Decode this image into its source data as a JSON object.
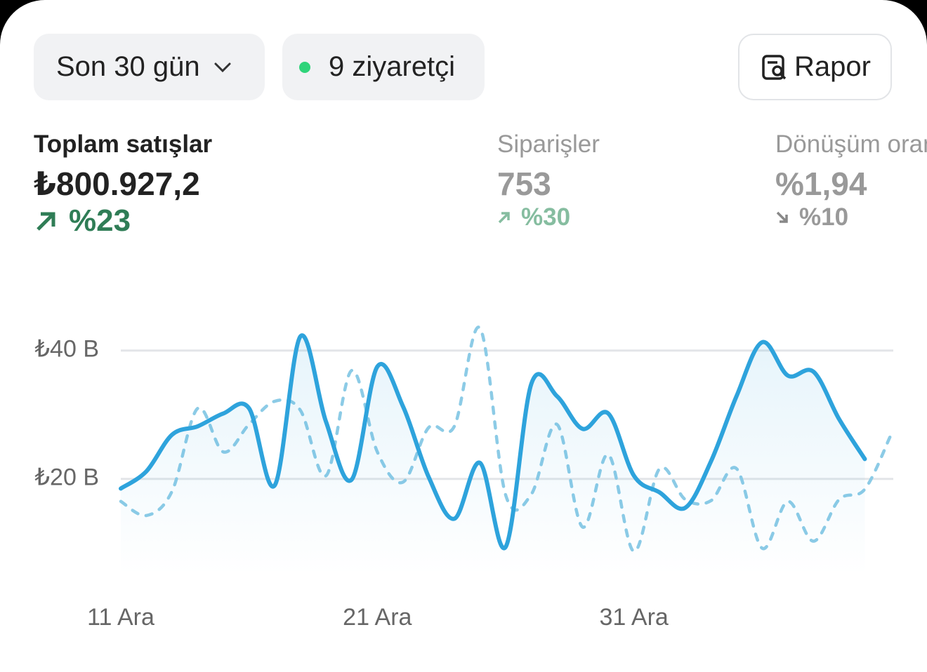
{
  "filters": {
    "period": "Son 30 gün",
    "visitors": "9 ziyaretçi",
    "report": "Rapor"
  },
  "metrics": [
    {
      "label": "Toplam satışlar",
      "value": "₺800.927,2",
      "change": "%23"
    },
    {
      "label": "Siparişler",
      "value": "753",
      "change": "%30"
    },
    {
      "label": "Dönüşüm oranı",
      "value": "%1,94",
      "change": "%10"
    }
  ],
  "chart_data": {
    "type": "line",
    "categories": [
      "11 Ara",
      null,
      null,
      null,
      null,
      null,
      null,
      null,
      null,
      null,
      "21 Ara",
      null,
      null,
      null,
      null,
      null,
      null,
      null,
      null,
      null,
      "31 Ara",
      null,
      null,
      null,
      null,
      null,
      null,
      null,
      null,
      null,
      null
    ],
    "series": [
      {
        "color": "#2ea3dc",
        "style": "solid",
        "values": [
          18.5,
          21.2,
          26.9,
          28.2,
          30.2,
          31.0,
          19.0,
          42.2,
          28.9,
          19.9,
          37.5,
          31.3,
          20.3,
          13.8,
          22.5,
          9.4,
          34.8,
          32.9,
          27.8,
          30.2,
          20.5,
          17.9,
          15.5,
          22.7,
          32.9,
          41.3,
          36.1,
          36.7,
          29.3,
          23.1,
          null
        ]
      },
      {
        "color": "#8ccbe6",
        "style": "dashed",
        "values": [
          16.5,
          14.3,
          18.1,
          31.0,
          24.2,
          28.5,
          32.1,
          30.7,
          20.5,
          36.9,
          24.2,
          19.5,
          28.0,
          28.2,
          43.5,
          17.5,
          17.6,
          28.5,
          12.5,
          23.8,
          8.7,
          21.6,
          16.8,
          16.6,
          21.6,
          9.2,
          16.5,
          10.3,
          16.8,
          18.4,
          26.7
        ]
      }
    ],
    "ylim": [
      5,
      45
    ],
    "yticks": [
      {
        "value": 20,
        "label": "₺20 B"
      },
      {
        "value": 40,
        "label": "₺40 B"
      }
    ],
    "grid": true
  }
}
